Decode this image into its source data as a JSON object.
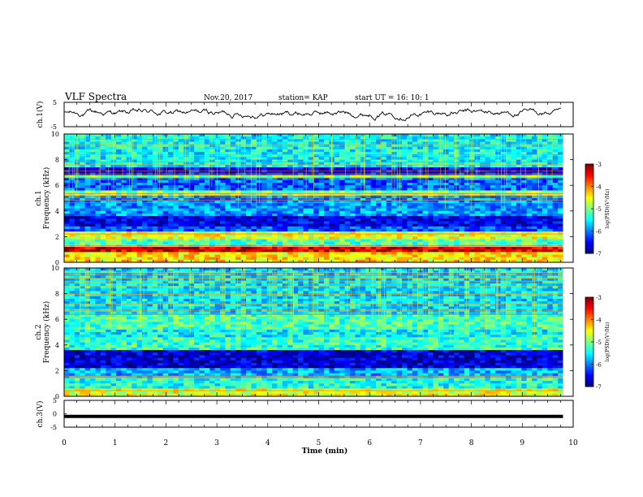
{
  "header": {
    "title": "VLF Spectra",
    "date": "Nov.20, 2017",
    "station": "station= KAP",
    "start": "start  UT =   16: 10: 1"
  },
  "chart_data": [
    {
      "type": "line",
      "name": "ch1-waveform-panel",
      "ylabel": "ch.1(V)",
      "ylim": [
        -5,
        5
      ],
      "yticks": [
        "5",
        "-5"
      ],
      "x_range": [
        0,
        10
      ],
      "series": [
        {
          "values_V_approx_noisy_around": [
            0,
            1.0
          ]
        }
      ]
    },
    {
      "type": "heatmap",
      "name": "ch1-spectrogram",
      "ylabel": "ch.1\nFrequency (kHz)",
      "ylim": [
        0,
        10
      ],
      "yticks": [
        "0",
        "2",
        "4",
        "6",
        "8",
        "10"
      ],
      "xlim": [
        0,
        9.8
      ],
      "colorbar": {
        "label": "log(PSD)(V²/Hz)",
        "range": [
          -7,
          -3
        ],
        "ticks": [
          "-3",
          "-4",
          "-5",
          "-6",
          "-7"
        ]
      },
      "bands_kHz": [
        {
          "lo": 0.0,
          "hi": 0.9,
          "level": -4.4
        },
        {
          "lo": 0.9,
          "hi": 1.1,
          "level": -3.3
        },
        {
          "lo": 1.1,
          "hi": 1.8,
          "level": -5.2
        },
        {
          "lo": 1.8,
          "hi": 2.4,
          "level": -4.6
        },
        {
          "lo": 2.4,
          "hi": 2.8,
          "level": -6.2
        },
        {
          "lo": 2.8,
          "hi": 3.6,
          "level": -6.6
        },
        {
          "lo": 3.6,
          "hi": 5.2,
          "level": -5.9
        },
        {
          "lo": 5.2,
          "hi": 5.6,
          "level": -5.0
        },
        {
          "lo": 5.6,
          "hi": 6.5,
          "level": -6.1
        },
        {
          "lo": 6.5,
          "hi": 6.8,
          "level": -5.0
        },
        {
          "lo": 6.8,
          "hi": 7.4,
          "level": -6.5
        },
        {
          "lo": 7.4,
          "hi": 10.0,
          "level": -5.5
        }
      ]
    },
    {
      "type": "heatmap",
      "name": "ch2-spectrogram",
      "ylabel": "ch.2\nFrequency (kHz)",
      "ylim": [
        0,
        10
      ],
      "yticks": [
        "0",
        "2",
        "4",
        "6",
        "8",
        "10"
      ],
      "xlim": [
        0,
        9.8
      ],
      "colorbar": {
        "label": "log(PSD)(V²/Hz)",
        "range": [
          -7,
          -3
        ],
        "ticks": [
          "-3",
          "-4",
          "-5",
          "-6",
          "-7"
        ]
      },
      "bands_kHz": [
        {
          "lo": 0.0,
          "hi": 0.5,
          "level": -4.6
        },
        {
          "lo": 0.5,
          "hi": 1.6,
          "level": -5.4
        },
        {
          "lo": 1.6,
          "hi": 2.2,
          "level": -5.8
        },
        {
          "lo": 2.2,
          "hi": 3.6,
          "level": -6.7
        },
        {
          "lo": 3.6,
          "hi": 4.6,
          "level": -5.3
        },
        {
          "lo": 4.6,
          "hi": 5.2,
          "level": -5.5
        },
        {
          "lo": 5.2,
          "hi": 6.4,
          "level": -5.2
        },
        {
          "lo": 6.4,
          "hi": 10.0,
          "level": -5.6
        }
      ]
    },
    {
      "type": "line",
      "name": "ch3-waveform-panel",
      "ylabel": "ch.3(V)",
      "ylim": [
        -5,
        5
      ],
      "yticks": [
        "5",
        "0",
        "-5"
      ],
      "series": [
        {
          "values_V_constant": -1.0
        }
      ]
    }
  ],
  "xaxis": {
    "label": "Time (min)",
    "ticks": [
      "0",
      "1",
      "2",
      "3",
      "4",
      "5",
      "6",
      "7",
      "8",
      "9",
      "10"
    ],
    "range": [
      0,
      10
    ]
  },
  "colors": {
    "frame": "#000000",
    "background": "#ffffff"
  }
}
